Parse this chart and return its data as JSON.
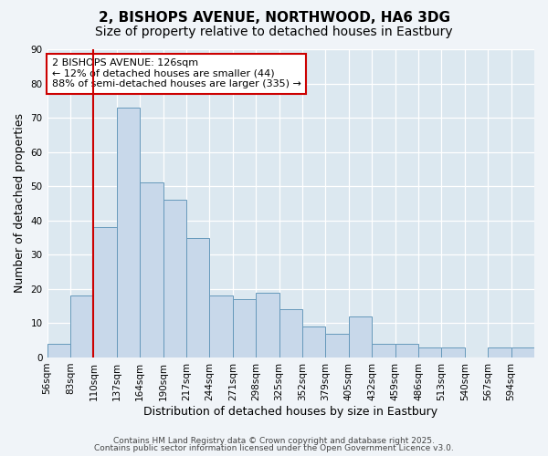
{
  "title": "2, BISHOPS AVENUE, NORTHWOOD, HA6 3DG",
  "subtitle": "Size of property relative to detached houses in Eastbury",
  "xlabel": "Distribution of detached houses by size in Eastbury",
  "ylabel": "Number of detached properties",
  "bar_color": "#c8d8ea",
  "bar_edge_color": "#6699bb",
  "bg_color": "#dce8f0",
  "grid_color": "#ffffff",
  "categories": [
    "56sqm",
    "83sqm",
    "110sqm",
    "137sqm",
    "164sqm",
    "190sqm",
    "217sqm",
    "244sqm",
    "271sqm",
    "298sqm",
    "325sqm",
    "352sqm",
    "379sqm",
    "405sqm",
    "432sqm",
    "459sqm",
    "486sqm",
    "513sqm",
    "540sqm",
    "567sqm",
    "594sqm"
  ],
  "values": [
    4,
    18,
    38,
    73,
    51,
    46,
    35,
    18,
    17,
    19,
    14,
    9,
    7,
    12,
    4,
    4,
    3,
    3,
    0,
    3,
    3
  ],
  "ylim": [
    0,
    90
  ],
  "yticks": [
    0,
    10,
    20,
    30,
    40,
    50,
    60,
    70,
    80,
    90
  ],
  "vline_color": "#cc0000",
  "annotation_title": "2 BISHOPS AVENUE: 126sqm",
  "annotation_line1": "← 12% of detached houses are smaller (44)",
  "annotation_line2": "88% of semi-detached houses are larger (335) →",
  "annotation_box_color": "#cc0000",
  "footer1": "Contains HM Land Registry data © Crown copyright and database right 2025.",
  "footer2": "Contains public sector information licensed under the Open Government Licence v3.0.",
  "title_fontsize": 11,
  "subtitle_fontsize": 10,
  "xlabel_fontsize": 9,
  "ylabel_fontsize": 9,
  "tick_fontsize": 7.5,
  "annotation_fontsize": 8,
  "footer_fontsize": 6.5
}
